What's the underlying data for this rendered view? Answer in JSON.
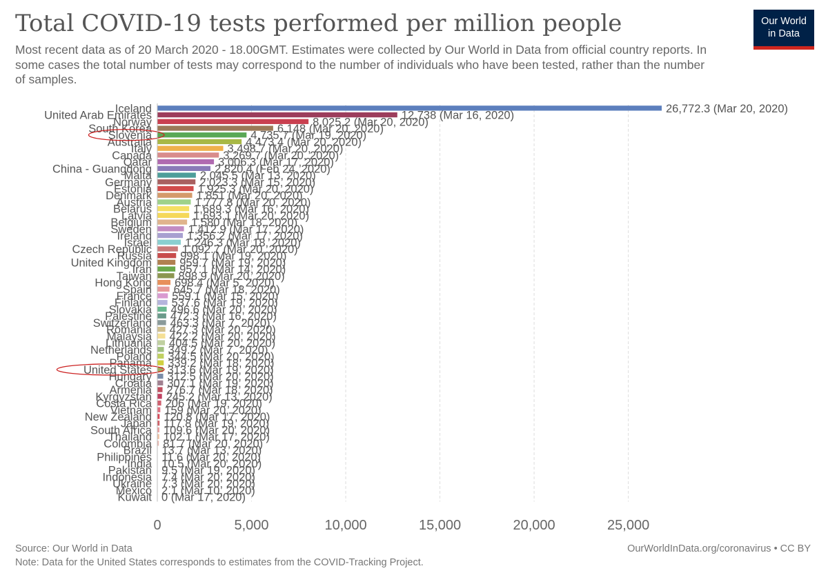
{
  "title": "Total COVID-19 tests performed per million people",
  "subtitle": "Most recent data as of 20 March 2020 - 18.00GMT. Estimates were collected by Our World in Data from official country reports. In some cases the total number of tests may correspond to the number of individuals who have been tested, rather than the number of samples.",
  "logo": {
    "line1": "Our World",
    "line2": "in Data",
    "bg_color": "#002147",
    "accent_color": "#ce261e"
  },
  "source": "Source: Our World in Data",
  "note": "Note: Data for the United States corresponds to estimates from the COVID-Tracking Project.",
  "credit": "OurWorldInData.org/coronavirus • CC BY",
  "highlighted_countries": [
    "Slovenia",
    "United States"
  ],
  "highlight_color": "#cc2222",
  "chart_data": {
    "type": "bar",
    "orientation": "horizontal",
    "xlim": [
      0,
      26772.3
    ],
    "xticks": [
      0,
      5000,
      10000,
      15000,
      20000,
      25000
    ],
    "xtick_labels": [
      "0",
      "5,000",
      "10,000",
      "15,000",
      "20,000",
      "25,000"
    ],
    "grid": "vertical dashed",
    "categories": [
      "Iceland",
      "United Arab Emirates",
      "Norway",
      "South Korea",
      "Slovenia",
      "Australia",
      "Italy",
      "Canada",
      "Qatar",
      "China - Guangdong",
      "Malta",
      "Germany",
      "Estonia",
      "Denmark",
      "Austria",
      "Belarus",
      "Latvia",
      "Belgium",
      "Sweden",
      "Ireland",
      "Israel",
      "Czech Republic",
      "Russia",
      "United Kingdom",
      "Iran",
      "Taiwan",
      "Hong Kong",
      "Spain",
      "France",
      "Finland",
      "Slovakia",
      "Palestine",
      "Switzerland",
      "Romania",
      "Malaysia",
      "Lithuania",
      "Netherlands",
      "Poland",
      "Panama",
      "United States",
      "Hungary",
      "Croatia",
      "Armenia",
      "Kyrgyzstan",
      "Costa Rica",
      "Vietnam",
      "New Zealand",
      "Japan",
      "South Africa",
      "Thailand",
      "Colombia",
      "Brazil",
      "Philippines",
      "India",
      "Pakistan",
      "Indonesia",
      "Ukraine",
      "Mexico",
      "Kuwait"
    ],
    "values": [
      26772.3,
      12738,
      8025.2,
      6148,
      4735.7,
      4473.4,
      3498.7,
      3269.7,
      3006.3,
      2820.4,
      2045.5,
      2023.3,
      1925.3,
      1851,
      1777.8,
      1689.3,
      1693.1,
      1580,
      1412.9,
      1356.2,
      1246.3,
      1092.7,
      998.1,
      959.7,
      957.1,
      898.9,
      698.4,
      645.7,
      559.1,
      537.6,
      496.6,
      472.3,
      463.3,
      427.3,
      422.2,
      404.5,
      349.2,
      344.5,
      339.2,
      313.6,
      312.5,
      307.1,
      276.7,
      245.2,
      206,
      159,
      120.8,
      117.8,
      109.6,
      102.1,
      81.7,
      13.7,
      11.6,
      10.5,
      9.5,
      7.4,
      7.3,
      2.1,
      0
    ],
    "value_labels": [
      "26,772.3 (Mar 20, 2020)",
      "12,738 (Mar 16, 2020)",
      "8,025.2 (Mar 20, 2020)",
      "6,148 (Mar 20, 2020)",
      "4,735.7 (Mar 19, 2020)",
      "4,473.4 (Mar 20, 2020)",
      "3,498.7 (Mar 20, 2020)",
      "3,269.7 (Mar 20, 2020)",
      "3,006.3 (Mar 17, 2020)",
      "2,820.4 (Feb 24, 2020)",
      "2,045.5 (Mar 13, 2020)",
      "2,023.3 (Mar 15, 2020)",
      "1,925.3 (Mar 20, 2020)",
      "1,851 (Mar 20, 2020)",
      "1,777.8 (Mar 20, 2020)",
      "1,689.3 (Mar 16, 2020)",
      "1,693.1 (Mar 20, 2020)",
      "1,580 (Mar 18, 2020)",
      "1,412.9 (Mar 17, 2020)",
      "1,356.2 (Mar 17, 2020)",
      "1,246.3 (Mar 18, 2020)",
      "1,092.7 (Mar 20, 2020)",
      "998.1 (Mar 19, 2020)",
      "959.7 (Mar 19, 2020)",
      "957.1 (Mar 14, 2020)",
      "898.9 (Mar 20, 2020)",
      "698.4 (Mar 5, 2020)",
      "645.7 (Mar 18, 2020)",
      "559.1 (Mar 15, 2020)",
      "537.6 (Mar 19, 2020)",
      "496.6 (Mar 20, 2020)",
      "472.3 (Mar 16, 2020)",
      "463.3 (Mar 7, 2020)",
      "427.3 (Mar 20, 2020)",
      "422.2 (Mar 20, 2020)",
      "404.5 (Mar 20, 2020)",
      "349.2 (Mar 7, 2020)",
      "344.5 (Mar 20, 2020)",
      "339.2 (Mar 18, 2020)",
      "313.6 (Mar 19, 2020)",
      "312.5 (Mar 20, 2020)",
      "307.1 (Mar 19, 2020)",
      "276.7 (Mar 18, 2020)",
      "245.2 (Mar 13, 2020)",
      "206 (Mar 19, 2020)",
      "159 (Mar 20, 2020)",
      "120.8 (Mar 17, 2020)",
      "117.8 (Mar 19, 2020)",
      "109.6 (Mar 20, 2020)",
      "102.1 (Mar 17, 2020)",
      "81.7 (Mar 20, 2020)",
      "13.7 (Mar 13, 2020)",
      "11.6 (Mar 20, 2020)",
      "10.5 (Mar 20, 2020)",
      "9.5 (Mar 19, 2020)",
      "7.4 (Mar 20, 2020)",
      "7.3 (Mar 20, 2020)",
      "2.1 (Mar 10, 2020)",
      "0 (Mar 17, 2020)"
    ],
    "colors": [
      "#5c7fbd",
      "#9c3d5c",
      "#c94050",
      "#9b7a58",
      "#5aa855",
      "#a8b845",
      "#f0b04a",
      "#d98c8c",
      "#b06ab0",
      "#8a7ab8",
      "#4e9e9a",
      "#a86060",
      "#d24b4b",
      "#d49a6a",
      "#9ed28a",
      "#f5e063",
      "#f5d85a",
      "#e0b48c",
      "#c28cc2",
      "#a8a0d0",
      "#8acfd0",
      "#c97a7a",
      "#c84c4c",
      "#b08050",
      "#6aa84a",
      "#8c9650",
      "#e8905a",
      "#e69a9a",
      "#d99ad0",
      "#b4b4dc",
      "#6ab890",
      "#6a9a8a",
      "#8a9a9a",
      "#d0c090",
      "#f5e096",
      "#c0d0a0",
      "#a0c080",
      "#c0d060",
      "#d0d040",
      "#a0b060",
      "#7a8ca8",
      "#a08090",
      "#c05060",
      "#c04060",
      "#d06070",
      "#e07080",
      "#d84858",
      "#d06068",
      "#e8a0a0",
      "#f0c0a0",
      "#e8b8b0",
      "#f0e0d0",
      "#e0d8e8",
      "#d8e8f0",
      "#f8f0f0",
      "#f0f0f8",
      "#f0f8f0",
      "#f8f8f0",
      "#e8e8e8"
    ]
  }
}
